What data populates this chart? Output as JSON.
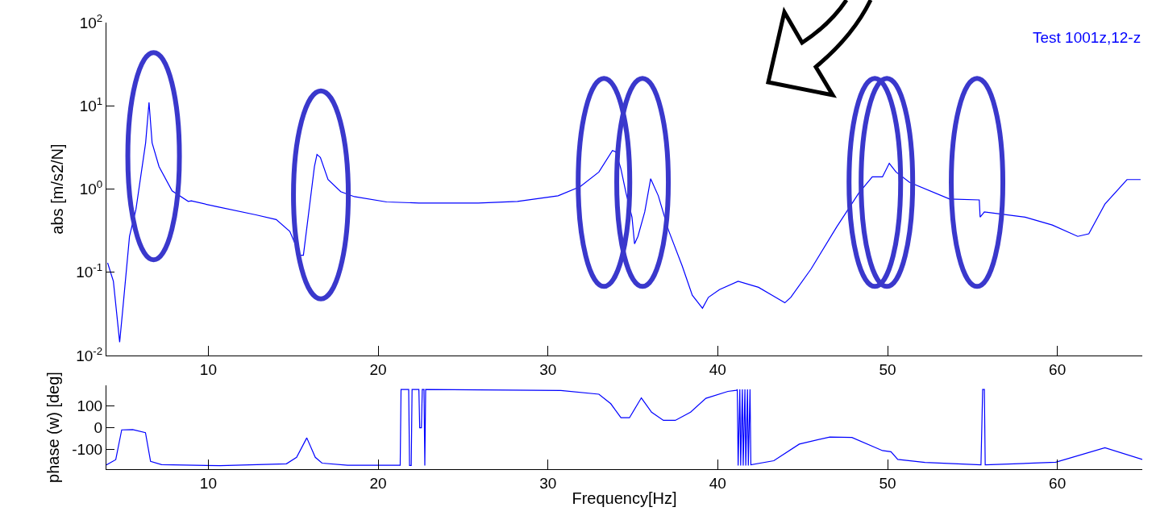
{
  "chart_data": [
    {
      "type": "line",
      "ylabel": "abs [m/s2/N]",
      "log": "y",
      "xlim": [
        4,
        65
      ],
      "xticks": [
        10,
        20,
        30,
        40,
        50,
        60
      ],
      "ylim": [
        0.01,
        100
      ],
      "yticks": [
        {
          "value": 0.01,
          "label": "10$^{-2}$"
        },
        {
          "value": 0.1,
          "label": "10$^{-1}$"
        },
        {
          "value": 1,
          "label": "10$^{0}$"
        },
        {
          "value": 10,
          "label": "10$^{1}$"
        },
        {
          "value": 100,
          "label": "10$^{2}$"
        }
      ],
      "series": [
        {
          "name": "Test 1001z,12-z",
          "color": "#0000ff",
          "x": [
            4.07,
            4.41,
            4.78,
            4.97,
            5.36,
            5.74,
            6.31,
            6.51,
            6.69,
            7.1,
            7.87,
            8.82,
            9.0,
            10.4,
            12.8,
            14.0,
            14.8,
            15.4,
            15.6,
            16.25,
            16.4,
            16.6,
            17.05,
            17.8,
            18.6,
            20.5,
            22.4,
            25.9,
            28.2,
            30.6,
            31.9,
            33.0,
            33.8,
            34.0,
            34.3,
            34.6,
            34.95,
            35.1,
            35.3,
            35.7,
            36.05,
            36.5,
            37.1,
            37.9,
            38.5,
            39.1,
            39.45,
            40.1,
            41.2,
            42.4,
            43.2,
            43.95,
            44.3,
            45.5,
            47.0,
            48.3,
            49.1,
            49.7,
            50.1,
            50.5,
            51.3,
            53.65,
            55.4,
            55.45,
            55.7,
            58.1,
            59.7,
            61.2,
            61.85,
            62.8,
            64.1,
            64.9
          ],
          "values": [
            0.13,
            0.078,
            0.0145,
            0.037,
            0.27,
            0.57,
            3.6,
            11,
            3.6,
            1.86,
            0.95,
            0.71,
            0.72,
            0.62,
            0.49,
            0.43,
            0.31,
            0.16,
            0.16,
            1.86,
            2.6,
            2.4,
            1.3,
            0.93,
            0.81,
            0.7,
            0.68,
            0.68,
            0.71,
            0.83,
            1.07,
            1.6,
            2.9,
            2.8,
            1.74,
            0.89,
            0.46,
            0.22,
            0.27,
            0.53,
            1.33,
            0.83,
            0.32,
            0.12,
            0.053,
            0.037,
            0.05,
            0.062,
            0.078,
            0.066,
            0.053,
            0.043,
            0.05,
            0.11,
            0.35,
            0.89,
            1.4,
            1.4,
            2.04,
            1.6,
            1.2,
            0.76,
            0.74,
            0.46,
            0.53,
            0.46,
            0.37,
            0.27,
            0.29,
            0.66,
            1.3,
            1.3
          ]
        }
      ]
    },
    {
      "type": "line",
      "ylabel": "phase (w) [deg]",
      "xlabel": "Frequency[Hz]",
      "xlim": [
        4,
        65
      ],
      "xticks": [
        10,
        20,
        30,
        40,
        50,
        60
      ],
      "ylim": [
        -192,
        196
      ],
      "yticks": [
        -100,
        0,
        100
      ],
      "series": [
        {
          "color": "#0000ff",
          "x": [
            4.0,
            4.55,
            4.9,
            5.55,
            6.3,
            6.6,
            7.25,
            10.7,
            14.6,
            15.2,
            15.8,
            16.3,
            16.7,
            18.2,
            21.3,
            21.35,
            21.8,
            21.85,
            21.95,
            22.0,
            22.4,
            22.45,
            22.55,
            22.6,
            22.7,
            22.75,
            22.8,
            30.76,
            33.0,
            33.7,
            34.3,
            34.8,
            35.5,
            36.1,
            36.8,
            37.5,
            38.4,
            39.3,
            40.6,
            41.1,
            41.15,
            41.2,
            41.3,
            41.35,
            41.45,
            41.5,
            41.6,
            41.65,
            41.75,
            41.8,
            41.9,
            41.95,
            43.3,
            44.8,
            46.6,
            47.9,
            49.7,
            50.2,
            50.6,
            52.2,
            55.5,
            55.6,
            55.7,
            55.75,
            59.9,
            62.8,
            65
          ],
          "values": [
            -172,
            -148,
            -10,
            -9,
            -23,
            -156,
            -171,
            -176,
            -167,
            -137,
            -47,
            -137,
            -164,
            -174,
            -174,
            177,
            177,
            -175,
            -175,
            177,
            177,
            0,
            0,
            177,
            177,
            -175,
            177,
            172,
            155,
            111,
            46,
            46,
            138,
            72,
            34,
            34,
            72,
            136,
            168,
            173,
            177,
            -175,
            177,
            -175,
            177,
            -175,
            177,
            -175,
            177,
            -175,
            177,
            -172,
            -153,
            -76,
            -43,
            -45,
            -106,
            -111,
            -147,
            -161,
            -172,
            177,
            177,
            -172,
            -160,
            -93,
            -147
          ]
        }
      ]
    }
  ]
}
